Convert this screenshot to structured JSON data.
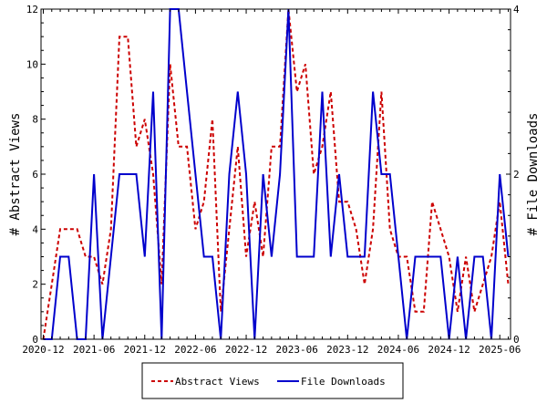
{
  "chart_data": {
    "type": "line",
    "x_ticks": [
      "2020-12",
      "2021-06",
      "2021-12",
      "2022-06",
      "2022-12",
      "2023-06",
      "2023-12",
      "2024-06",
      "2024-12",
      "2025-06"
    ],
    "x": [
      "2020-12",
      "2021-01",
      "2021-02",
      "2021-03",
      "2021-04",
      "2021-05",
      "2021-06",
      "2021-07",
      "2021-08",
      "2021-09",
      "2021-10",
      "2021-11",
      "2021-12",
      "2022-01",
      "2022-02",
      "2022-03",
      "2022-04",
      "2022-05",
      "2022-06",
      "2022-07",
      "2022-08",
      "2022-09",
      "2022-10",
      "2022-11",
      "2022-12",
      "2023-01",
      "2023-02",
      "2023-03",
      "2023-04",
      "2023-05",
      "2023-06",
      "2023-07",
      "2023-08",
      "2023-09",
      "2023-10",
      "2023-11",
      "2023-12",
      "2024-01",
      "2024-02",
      "2024-03",
      "2024-04",
      "2024-05",
      "2024-06",
      "2024-07",
      "2024-08",
      "2024-09",
      "2024-10",
      "2024-11",
      "2024-12",
      "2025-01",
      "2025-02",
      "2025-03",
      "2025-04",
      "2025-05",
      "2025-06",
      "2025-07"
    ],
    "ylabel_left": "# Abstract Views",
    "ylabel_right": "# File Downloads",
    "ylim_left": [
      0,
      12
    ],
    "ylim_right": [
      0,
      4
    ],
    "y_ticks_left": [
      "0",
      "2",
      "4",
      "6",
      "8",
      "10",
      "12"
    ],
    "y_ticks_right": [
      "0",
      "2",
      "4"
    ],
    "series": [
      {
        "name": "Abstract Views",
        "axis": "left",
        "color": "#cc0000",
        "style": "dashed",
        "values": [
          0,
          2,
          4,
          4,
          4,
          3,
          3,
          2,
          4,
          11,
          11,
          7,
          8,
          6,
          2,
          10,
          7,
          7,
          4,
          5,
          8,
          1,
          4,
          7,
          3,
          5,
          3,
          7,
          7,
          12,
          9,
          10,
          6,
          7,
          9,
          5,
          5,
          4,
          2,
          4,
          9,
          4,
          3,
          3,
          1,
          1,
          5,
          4,
          3,
          1,
          3,
          1,
          2,
          3,
          5,
          2
        ]
      },
      {
        "name": "File Downloads",
        "axis": "right",
        "color": "#0000cc",
        "style": "solid",
        "values": [
          0,
          0,
          1,
          1,
          0,
          0,
          2,
          0,
          1,
          2,
          2,
          2,
          1,
          3,
          0,
          4,
          4,
          3,
          2,
          1,
          1,
          0,
          2,
          3,
          2,
          0,
          2,
          1,
          2,
          4,
          1,
          1,
          1,
          3,
          1,
          2,
          1,
          1,
          1,
          3,
          2,
          2,
          1,
          0,
          1,
          1,
          1,
          1,
          0,
          1,
          0,
          1,
          1,
          0,
          2,
          1
        ]
      }
    ],
    "legend_position": "bottom-center",
    "grid": false
  }
}
